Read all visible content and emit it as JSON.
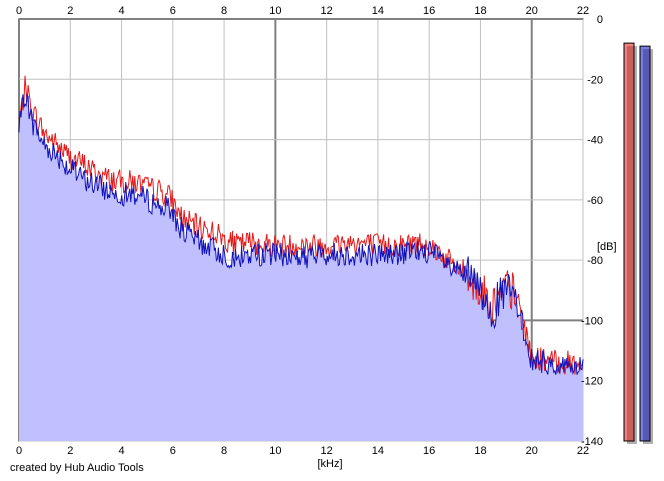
{
  "chart_data": {
    "type": "area",
    "xlabel": "[kHz]",
    "ylabel": "[dB]",
    "xlim": [
      0,
      22
    ],
    "ylim": [
      -140,
      0
    ],
    "xticks": [
      0,
      2,
      4,
      6,
      8,
      10,
      12,
      14,
      16,
      18,
      20,
      22
    ],
    "yticks": [
      0,
      -20,
      -40,
      -60,
      -80,
      -100,
      -120,
      -140
    ],
    "grid": true,
    "colors": {
      "channel1": "#e41a1a",
      "channel2": "#1111bb",
      "fill": "#c0c0ff",
      "grid": "#c0c0c0"
    },
    "series": [
      {
        "x": [
          0,
          0.1,
          0.25,
          0.5,
          0.75,
          1,
          1.5,
          2,
          2.5,
          3,
          3.5,
          4,
          4.5,
          5,
          5.5,
          5.9,
          6.2,
          6.5,
          7,
          7.5,
          8,
          8.5,
          9,
          10,
          11,
          12,
          13,
          14,
          15,
          15.5,
          16,
          16.5,
          17,
          17.5,
          18,
          18.5,
          19,
          19.3,
          19.5,
          19.8,
          20,
          20.5,
          21,
          21.5,
          22
        ],
        "values": [
          -34,
          -30,
          -22,
          -30,
          -34,
          -38,
          -42,
          -46,
          -48,
          -51,
          -53,
          -54,
          -54,
          -56,
          -57,
          -59,
          -64,
          -67,
          -69,
          -70,
          -73,
          -75,
          -74,
          -75,
          -75,
          -75,
          -74,
          -75,
          -75,
          -74,
          -75,
          -78,
          -82,
          -84,
          -90,
          -95,
          -89,
          -91,
          -96,
          -106,
          -112,
          -113,
          -114,
          -114,
          -115
        ]
      },
      {
        "x": [
          0,
          0.1,
          0.25,
          0.5,
          0.75,
          1,
          1.5,
          2,
          2.5,
          3,
          3.5,
          4,
          4.5,
          5,
          5.5,
          5.9,
          6.2,
          6.5,
          7,
          7.5,
          8,
          8.5,
          9,
          10,
          11,
          12,
          13,
          14,
          15,
          15.5,
          16,
          16.5,
          17,
          17.5,
          18,
          18.5,
          19,
          19.3,
          19.5,
          19.8,
          20,
          20.5,
          21,
          21.5,
          22
        ],
        "values": [
          -36,
          -32,
          -24,
          -34,
          -38,
          -42,
          -45,
          -50,
          -53,
          -55,
          -57,
          -58,
          -58,
          -60,
          -62,
          -63,
          -68,
          -71,
          -74,
          -76,
          -78,
          -80,
          -78,
          -78,
          -79,
          -78,
          -78,
          -78,
          -78,
          -77,
          -77,
          -80,
          -84,
          -85,
          -91,
          -96,
          -90,
          -92,
          -97,
          -107,
          -113,
          -114,
          -115,
          -115,
          -116
        ]
      }
    ],
    "levels": [
      {
        "channel": 1,
        "value": -8
      },
      {
        "channel": 2,
        "value": -9
      }
    ]
  },
  "footer": {
    "credit": "created by Hub Audio Tools"
  }
}
